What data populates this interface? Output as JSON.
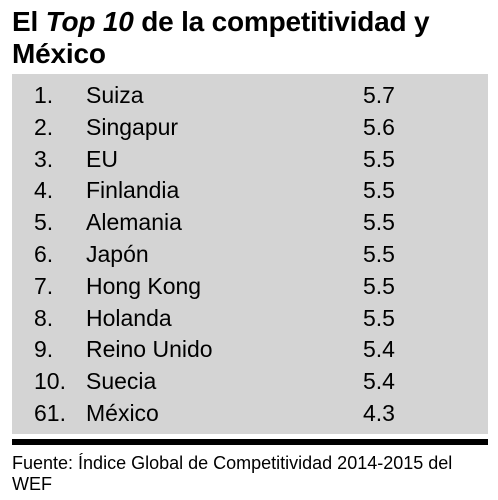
{
  "title": {
    "part1": "El ",
    "part2": "Top 10",
    "part3": " de la competitividad y México"
  },
  "source": "Fuente: Índice Global de Competitividad 2014-2015 del WEF",
  "colors": {
    "panel": "#d4d4d4",
    "text": "#000000",
    "rule": "#000000"
  },
  "chart_data": {
    "type": "table",
    "columns": [],
    "rows": [
      {
        "rank": "1.",
        "country": "Suiza",
        "score": "5.7"
      },
      {
        "rank": "2.",
        "country": "Singapur",
        "score": "5.6"
      },
      {
        "rank": "3.",
        "country": "EU",
        "score": "5.5"
      },
      {
        "rank": "4.",
        "country": "Finlandia",
        "score": "5.5"
      },
      {
        "rank": "5.",
        "country": "Alemania",
        "score": "5.5"
      },
      {
        "rank": "6.",
        "country": "Japón",
        "score": "5.5"
      },
      {
        "rank": "7.",
        "country": "Hong Kong",
        "score": "5.5"
      },
      {
        "rank": "8.",
        "country": "Holanda",
        "score": "5.5"
      },
      {
        "rank": "9.",
        "country": "Reino Unido",
        "score": "5.4"
      },
      {
        "rank": "10.",
        "country": "Suecia",
        "score": "5.4"
      },
      {
        "rank": "61.",
        "country": "México",
        "score": "4.3"
      }
    ]
  }
}
